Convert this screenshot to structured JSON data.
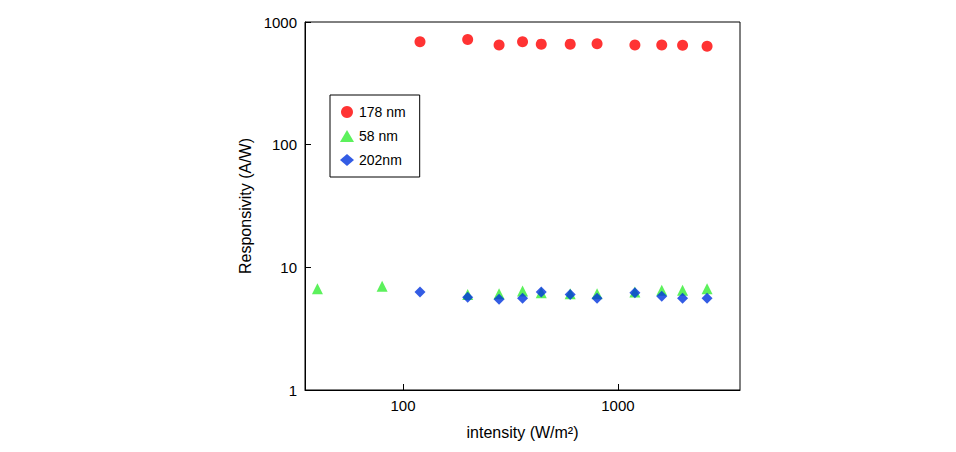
{
  "chart_data": {
    "type": "scatter",
    "x_label": "intensity (W/m²)",
    "y_label": "Responsivity (A/W)",
    "log": true,
    "xlim": [
      35,
      3700
    ],
    "xticks": [
      100,
      1000
    ],
    "ylim": [
      1,
      1000
    ],
    "yticks": [
      1,
      10,
      100,
      1000
    ],
    "legend": "upper left",
    "series": [
      {
        "name": "178 nm",
        "color": "#ff0000",
        "marker": "circle",
        "x": [
          120,
          200,
          280,
          360,
          440,
          600,
          800,
          1200,
          1600,
          2000,
          2600
        ],
        "values": [
          690,
          720,
          650,
          690,
          660,
          660,
          665,
          650,
          650,
          645,
          635
        ]
      },
      {
        "name": "58 nm",
        "color": "#33ee33",
        "marker": "triangle",
        "x": [
          40,
          80,
          200,
          280,
          360,
          440,
          600,
          800,
          1200,
          1600,
          2000,
          2600
        ],
        "values": [
          6.7,
          7.0,
          6.0,
          6.1,
          6.4,
          6.2,
          6.1,
          6.1,
          6.3,
          6.5,
          6.5,
          6.7
        ]
      },
      {
        "name": "202nm",
        "color": "#0033dd",
        "marker": "diamond",
        "x": [
          120,
          200,
          280,
          360,
          440,
          600,
          800,
          1200,
          1600,
          2000,
          2600
        ],
        "values": [
          6.3,
          5.7,
          5.5,
          5.6,
          6.3,
          6.0,
          5.6,
          6.2,
          5.8,
          5.6,
          5.6
        ]
      }
    ]
  }
}
